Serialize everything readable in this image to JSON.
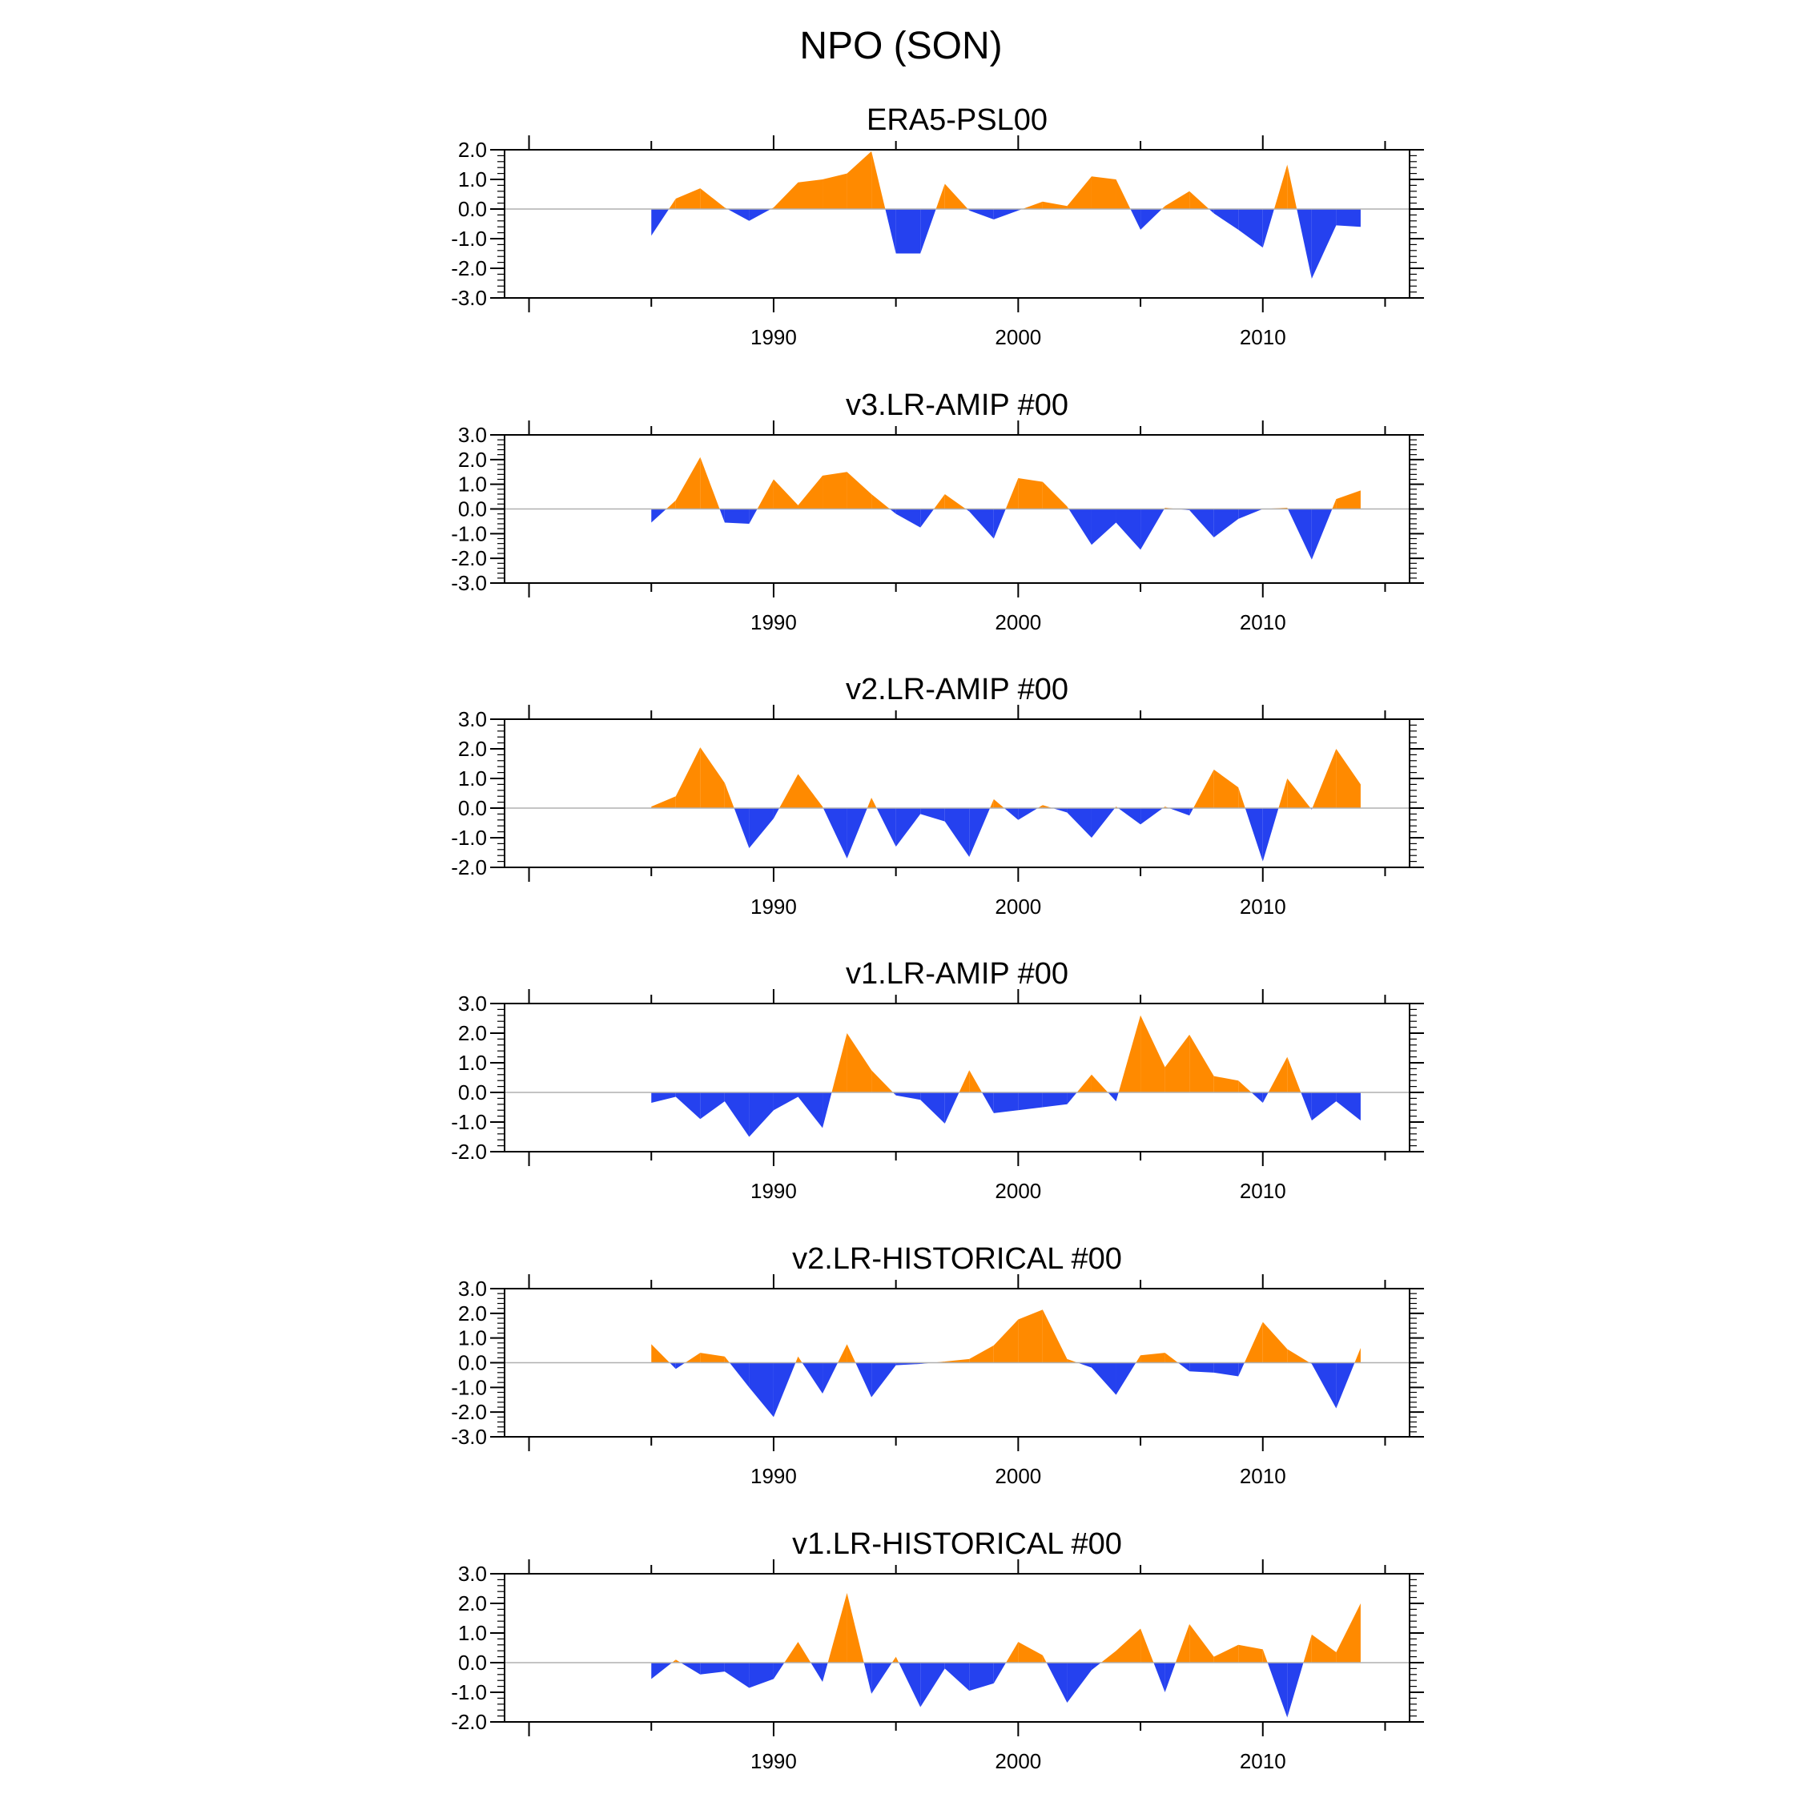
{
  "title": "NPO (SON)",
  "colors": {
    "positive": "#ff8a00",
    "negative": "#2541ef",
    "axis": "#000000",
    "zero": "#b0b0b0"
  },
  "chart_data": [
    {
      "type": "area",
      "title": "ERA5-PSL00",
      "x": [
        1985,
        1986,
        1987,
        1988,
        1989,
        1990,
        1991,
        1992,
        1993,
        1994,
        1995,
        1996,
        1997,
        1998,
        1999,
        2000,
        2001,
        2002,
        2003,
        2004,
        2005,
        2006,
        2007,
        2008,
        2009,
        2010,
        2011,
        2012,
        2013,
        2014
      ],
      "values": [
        -0.9,
        0.35,
        0.7,
        0.05,
        -0.4,
        0.05,
        0.9,
        1.0,
        1.2,
        1.95,
        -1.5,
        -1.5,
        0.85,
        -0.05,
        -0.35,
        -0.05,
        0.25,
        0.1,
        1.1,
        1.0,
        -0.7,
        0.1,
        0.6,
        -0.15,
        -0.7,
        -1.3,
        1.5,
        -2.35,
        -0.55,
        -0.6
      ],
      "xlim": [
        1979,
        2016
      ],
      "ylim": [
        -3.0,
        2.0
      ],
      "yticks": [
        "2.0",
        "1.0",
        "0.0",
        "-1.0",
        "-2.0",
        "-3.0"
      ],
      "xticks": [
        "1990",
        "2000",
        "2010"
      ]
    },
    {
      "type": "area",
      "title": "v3.LR-AMIP  #00",
      "x": [
        1985,
        1986,
        1987,
        1988,
        1989,
        1990,
        1991,
        1992,
        1993,
        1994,
        1995,
        1996,
        1997,
        1998,
        1999,
        2000,
        2001,
        2002,
        2003,
        2004,
        2005,
        2006,
        2007,
        2008,
        2009,
        2010,
        2011,
        2012,
        2013,
        2014
      ],
      "values": [
        -0.55,
        0.35,
        2.1,
        -0.55,
        -0.6,
        1.2,
        0.15,
        1.35,
        1.5,
        0.6,
        -0.2,
        -0.75,
        0.6,
        -0.1,
        -1.2,
        1.25,
        1.1,
        0.1,
        -1.45,
        -0.55,
        -1.65,
        0.05,
        -0.05,
        -1.15,
        -0.4,
        0.0,
        0.05,
        -2.05,
        0.4,
        0.75
      ],
      "xlim": [
        1979,
        2016
      ],
      "ylim": [
        -3.0,
        3.0
      ],
      "yticks": [
        "3.0",
        "2.0",
        "1.0",
        "0.0",
        "-1.0",
        "-2.0",
        "-3.0"
      ],
      "xticks": [
        "1990",
        "2000",
        "2010"
      ]
    },
    {
      "type": "area",
      "title": "v2.LR-AMIP  #00",
      "x": [
        1985,
        1986,
        1987,
        1988,
        1989,
        1990,
        1991,
        1992,
        1993,
        1994,
        1995,
        1996,
        1997,
        1998,
        1999,
        2000,
        2001,
        2002,
        2003,
        2004,
        2005,
        2006,
        2007,
        2008,
        2009,
        2010,
        2011,
        2012,
        2013,
        2014
      ],
      "values": [
        0.05,
        0.4,
        2.05,
        0.85,
        -1.35,
        -0.35,
        1.15,
        0.05,
        -1.7,
        0.35,
        -1.3,
        -0.2,
        -0.45,
        -1.65,
        0.3,
        -0.4,
        0.1,
        -0.15,
        -1.0,
        0.05,
        -0.55,
        0.05,
        -0.25,
        1.3,
        0.7,
        -1.8,
        1.0,
        -0.05,
        2.0,
        0.8
      ],
      "xlim": [
        1979,
        2016
      ],
      "ylim": [
        -2.0,
        3.0
      ],
      "yticks": [
        "3.0",
        "2.0",
        "1.0",
        "0.0",
        "-1.0",
        "-2.0"
      ],
      "xticks": [
        "1990",
        "2000",
        "2010"
      ]
    },
    {
      "type": "area",
      "title": "v1.LR-AMIP  #00",
      "x": [
        1985,
        1986,
        1987,
        1988,
        1989,
        1990,
        1991,
        1992,
        1993,
        1994,
        1995,
        1996,
        1997,
        1998,
        1999,
        2000,
        2001,
        2002,
        2003,
        2004,
        2005,
        2006,
        2007,
        2008,
        2009,
        2010,
        2011,
        2012,
        2013,
        2014
      ],
      "values": [
        -0.35,
        -0.15,
        -0.9,
        -0.3,
        -1.5,
        -0.6,
        -0.15,
        -1.2,
        2.0,
        0.75,
        -0.1,
        -0.25,
        -1.05,
        0.75,
        -0.7,
        -0.6,
        -0.5,
        -0.4,
        0.6,
        -0.3,
        2.6,
        0.85,
        1.95,
        0.55,
        0.4,
        -0.35,
        1.2,
        -0.95,
        -0.3,
        -0.95
      ],
      "xlim": [
        1979,
        2016
      ],
      "ylim": [
        -2.0,
        3.0
      ],
      "yticks": [
        "3.0",
        "2.0",
        "1.0",
        "0.0",
        "-1.0",
        "-2.0"
      ],
      "xticks": [
        "1990",
        "2000",
        "2010"
      ]
    },
    {
      "type": "area",
      "title": "v2.LR-HISTORICAL  #00",
      "x": [
        1985,
        1986,
        1987,
        1988,
        1989,
        1990,
        1991,
        1992,
        1993,
        1994,
        1995,
        1996,
        1997,
        1998,
        1999,
        2000,
        2001,
        2002,
        2003,
        2004,
        2005,
        2006,
        2007,
        2008,
        2009,
        2010,
        2011,
        2012,
        2013,
        2014
      ],
      "values": [
        0.75,
        -0.25,
        0.4,
        0.25,
        -1.0,
        -2.2,
        0.25,
        -1.25,
        0.75,
        -1.4,
        -0.1,
        -0.05,
        0.05,
        0.15,
        0.7,
        1.75,
        2.15,
        0.15,
        -0.2,
        -1.3,
        0.3,
        0.4,
        -0.35,
        -0.4,
        -0.55,
        1.65,
        0.55,
        -0.05,
        -1.85,
        0.6
      ],
      "xlim": [
        1979,
        2016
      ],
      "ylim": [
        -3.0,
        3.0
      ],
      "yticks": [
        "3.0",
        "2.0",
        "1.0",
        "0.0",
        "-1.0",
        "-2.0",
        "-3.0"
      ],
      "xticks": [
        "1990",
        "2000",
        "2010"
      ]
    },
    {
      "type": "area",
      "title": "v1.LR-HISTORICAL  #00",
      "x": [
        1985,
        1986,
        1987,
        1988,
        1989,
        1990,
        1991,
        1992,
        1993,
        1994,
        1995,
        1996,
        1997,
        1998,
        1999,
        2000,
        2001,
        2002,
        2003,
        2004,
        2005,
        2006,
        2007,
        2008,
        2009,
        2010,
        2011,
        2012,
        2013,
        2014
      ],
      "values": [
        -0.55,
        0.1,
        -0.4,
        -0.3,
        -0.85,
        -0.55,
        0.7,
        -0.65,
        2.35,
        -1.05,
        0.2,
        -1.5,
        -0.2,
        -0.95,
        -0.7,
        0.7,
        0.25,
        -1.35,
        -0.25,
        0.4,
        1.15,
        -1.0,
        1.3,
        0.2,
        0.6,
        0.45,
        -1.85,
        0.95,
        0.35,
        2.0
      ],
      "xlim": [
        1979,
        2016
      ],
      "ylim": [
        -2.0,
        3.0
      ],
      "yticks": [
        "3.0",
        "2.0",
        "1.0",
        "0.0",
        "-1.0",
        "-2.0"
      ],
      "xticks": [
        "1990",
        "2000",
        "2010"
      ]
    }
  ]
}
